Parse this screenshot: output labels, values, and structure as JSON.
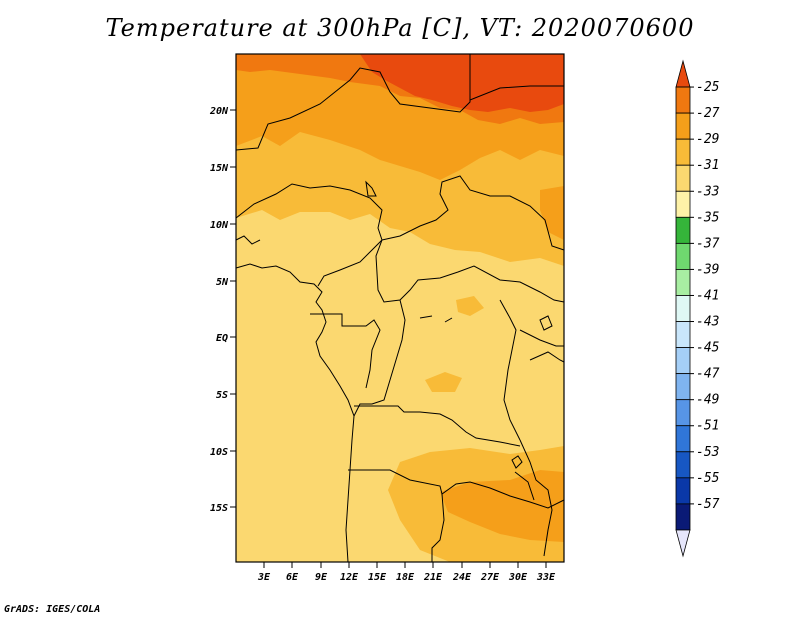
{
  "title": "Temperature at 300hPa [C], VT: 2020070600",
  "credit": "GrADS: IGES/COLA",
  "lat_ticks": [
    "20N",
    "15N",
    "10N",
    "5N",
    "EQ",
    "5S",
    "10S",
    "15S"
  ],
  "lon_ticks": [
    "3E",
    "6E",
    "9E",
    "12E",
    "15E",
    "18E",
    "21E",
    "24E",
    "27E",
    "30E",
    "33E"
  ],
  "colorbar": {
    "levels": [
      "-25",
      "-27",
      "-29",
      "-31",
      "-33",
      "-35",
      "-37",
      "-39",
      "-41",
      "-43",
      "-45",
      "-47",
      "-49",
      "-51",
      "-53",
      "-55",
      "-57"
    ],
    "colors": [
      "#e84a0e",
      "#f07810",
      "#f59f1a",
      "#f8bb38",
      "#fbd870",
      "#fef2a8",
      "#35b53a",
      "#6fd86f",
      "#a8eea2",
      "#dff8f5",
      "#c9e6fb",
      "#a5cff7",
      "#7fb4f0",
      "#5795e6",
      "#3076d8",
      "#1757c3",
      "#0a38a8",
      "#0a1a76",
      "#e6e6fb"
    ],
    "colors_note": ""
  },
  "palette": {
    "band_m25": "#e84a0e",
    "band_m27": "#f07810",
    "band_m29": "#f59f1a",
    "band_m31": "#f8bb38",
    "band_m33": "#fbd870",
    "band_m35": "#fef2a8"
  }
}
